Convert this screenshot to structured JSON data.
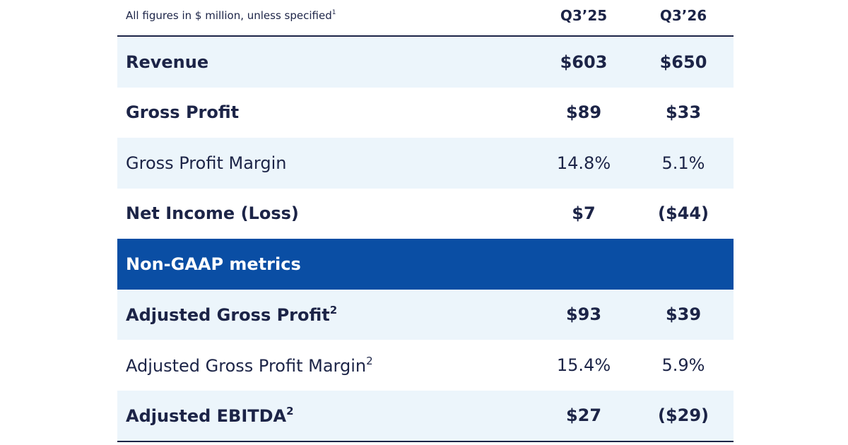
{
  "header": {
    "note": "All figures in $ million, unless specified",
    "note_sup": "1",
    "col1": "Q3’25",
    "col2": "Q3’26"
  },
  "rows": [
    {
      "label": "Revenue",
      "sup": "",
      "v1": "$603",
      "v2": "$650"
    },
    {
      "label": "Gross Profit",
      "sup": "",
      "v1": "$89",
      "v2": "$33"
    },
    {
      "label": "Gross Profit Margin",
      "sup": "",
      "v1": "14.8%",
      "v2": "5.1%"
    },
    {
      "label": "Net Income (Loss)",
      "sup": "",
      "v1": "$7",
      "v2": "($44)"
    },
    {
      "label": "Non-GAAP metrics"
    },
    {
      "label": "Adjusted Gross Profit",
      "sup": "2",
      "v1": "$93",
      "v2": "$39"
    },
    {
      "label": "Adjusted Gross Profit Margin",
      "sup": "2",
      "v1": "15.4%",
      "v2": "5.9%"
    },
    {
      "label": "Adjusted EBITDA",
      "sup": "2",
      "v1": "$27",
      "v2": "($29)"
    }
  ],
  "colors": {
    "text": "#1c2447",
    "row_shade": "#ecf5fb",
    "section_bg": "#0a4ea4"
  }
}
